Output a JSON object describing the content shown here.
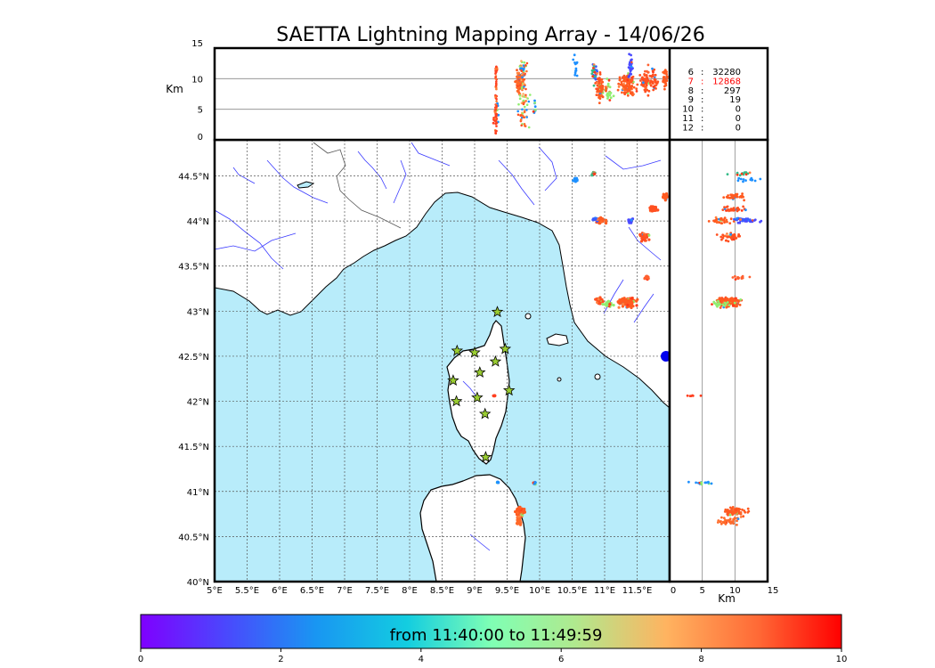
{
  "figure": {
    "title": "SAETTA Lightning Mapping Array - 14/06/26"
  },
  "chart_data": {
    "type": "scatter",
    "map": {
      "x_ticks": [
        "5°E",
        "5.5°E",
        "6°E",
        "6.5°E",
        "7°E",
        "7.5°E",
        "8°E",
        "8.5°E",
        "9°E",
        "9.5°E",
        "10°E",
        "10.5°E",
        "11°E",
        "11.5°E"
      ],
      "y_ticks": [
        "40°N",
        "40.5°N",
        "41°N",
        "41.5°N",
        "42°N",
        "42.5°N",
        "43°N",
        "43.5°N",
        "44°N",
        "44.5°N"
      ],
      "xlim": [
        5,
        12
      ],
      "ylim": [
        40,
        44.9
      ],
      "grid": true
    },
    "top_panel": {
      "ylabel": "Km",
      "y_ticks": [
        "0",
        "5",
        "10",
        "15"
      ],
      "ylim": [
        0,
        15
      ]
    },
    "side_panel": {
      "xlabel": "Km",
      "x_ticks": [
        "0",
        "5",
        "10",
        "15"
      ],
      "xlim": [
        0,
        15
      ]
    },
    "station_counts": [
      {
        "stations": "6",
        "count": "32280",
        "color": "#000000"
      },
      {
        "stations": "7",
        "count": "12868",
        "color": "#ff0000"
      },
      {
        "stations": "8",
        "count": "297",
        "color": "#000000"
      },
      {
        "stations": "9",
        "count": "19",
        "color": "#000000"
      },
      {
        "stations": "10",
        "count": "0",
        "color": "#000000"
      },
      {
        "stations": "11",
        "count": "0",
        "color": "#000000"
      },
      {
        "stations": "12",
        "count": "0",
        "color": "#000000"
      }
    ],
    "stations": [
      {
        "lon": 9.35,
        "lat": 42.99
      },
      {
        "lon": 8.73,
        "lat": 42.56
      },
      {
        "lon": 9.0,
        "lat": 42.54
      },
      {
        "lon": 9.47,
        "lat": 42.58
      },
      {
        "lon": 9.32,
        "lat": 42.44
      },
      {
        "lon": 9.08,
        "lat": 42.32
      },
      {
        "lon": 8.67,
        "lat": 42.23
      },
      {
        "lon": 9.53,
        "lat": 42.12
      },
      {
        "lon": 9.04,
        "lat": 42.04
      },
      {
        "lon": 8.72,
        "lat": 42.0
      },
      {
        "lon": 9.16,
        "lat": 41.86
      },
      {
        "lon": 9.17,
        "lat": 41.38
      }
    ],
    "clusters": [
      {
        "lon": 9.7,
        "lat": 40.78,
        "spread_lon": 0.1,
        "spread_lat": 0.06,
        "alt": 10.0,
        "color": "#ff5a20",
        "n": 70
      },
      {
        "lon": 9.68,
        "lat": 40.67,
        "spread_lon": 0.05,
        "spread_lat": 0.06,
        "alt": 9.0,
        "color": "#ff6a2a",
        "n": 40
      },
      {
        "lon": 9.92,
        "lat": 41.09,
        "spread_lon": 0.03,
        "spread_lat": 0.02,
        "alt": 5.0,
        "color": "#1e90ff",
        "n": 10
      },
      {
        "lon": 10.92,
        "lat": 43.12,
        "spread_lon": 0.08,
        "spread_lat": 0.05,
        "alt": 9.0,
        "color": "#ff5020",
        "n": 50
      },
      {
        "lon": 11.35,
        "lat": 43.1,
        "spread_lon": 0.18,
        "spread_lat": 0.08,
        "alt": 9.0,
        "color": "#ff5a20",
        "n": 110
      },
      {
        "lon": 11.05,
        "lat": 43.08,
        "spread_lon": 0.1,
        "spread_lat": 0.04,
        "alt": 8.0,
        "color": "#90ee70",
        "n": 25
      },
      {
        "lon": 11.65,
        "lat": 43.37,
        "spread_lon": 0.05,
        "spread_lat": 0.03,
        "alt": 11.0,
        "color": "#ff6030",
        "n": 12
      },
      {
        "lon": 11.62,
        "lat": 43.82,
        "spread_lon": 0.1,
        "spread_lat": 0.06,
        "alt": 9.0,
        "color": "#ff5020",
        "n": 45
      },
      {
        "lon": 11.4,
        "lat": 44.0,
        "spread_lon": 0.06,
        "spread_lat": 0.03,
        "alt": 12.0,
        "color": "#4a4aff",
        "n": 25
      },
      {
        "lon": 10.95,
        "lat": 44.0,
        "spread_lon": 0.1,
        "spread_lat": 0.05,
        "alt": 8.0,
        "color": "#ff5a20",
        "n": 35
      },
      {
        "lon": 10.85,
        "lat": 44.02,
        "spread_lon": 0.06,
        "spread_lat": 0.03,
        "alt": 11.0,
        "color": "#3a5aff",
        "n": 15
      },
      {
        "lon": 11.75,
        "lat": 44.13,
        "spread_lon": 0.08,
        "spread_lat": 0.04,
        "alt": 10.0,
        "color": "#ff5020",
        "n": 35
      },
      {
        "lon": 11.93,
        "lat": 44.27,
        "spread_lon": 0.06,
        "spread_lat": 0.05,
        "alt": 10.0,
        "color": "#ff5a20",
        "n": 30
      },
      {
        "lon": 10.55,
        "lat": 44.46,
        "spread_lon": 0.04,
        "spread_lat": 0.03,
        "alt": 12.0,
        "color": "#1e90ff",
        "n": 12
      },
      {
        "lon": 10.83,
        "lat": 44.52,
        "spread_lon": 0.04,
        "spread_lat": 0.04,
        "alt": 11.0,
        "color": "#33bb88",
        "n": 14
      },
      {
        "lon": 9.3,
        "lat": 42.06,
        "spread_lon": 0.04,
        "spread_lat": 0.01,
        "alt": 4.0,
        "color": "#ff4020",
        "n": 6
      },
      {
        "lon": 9.35,
        "lat": 41.1,
        "spread_lon": 0.04,
        "spread_lat": 0.01,
        "alt": 5.0,
        "color": "#1e90ff",
        "n": 6
      }
    ],
    "colorbar": {
      "label": "from 11:40:00 to 11:49:59",
      "ticks": [
        "0",
        "2",
        "4",
        "6",
        "8",
        "10"
      ],
      "range": [
        0,
        10
      ]
    }
  }
}
